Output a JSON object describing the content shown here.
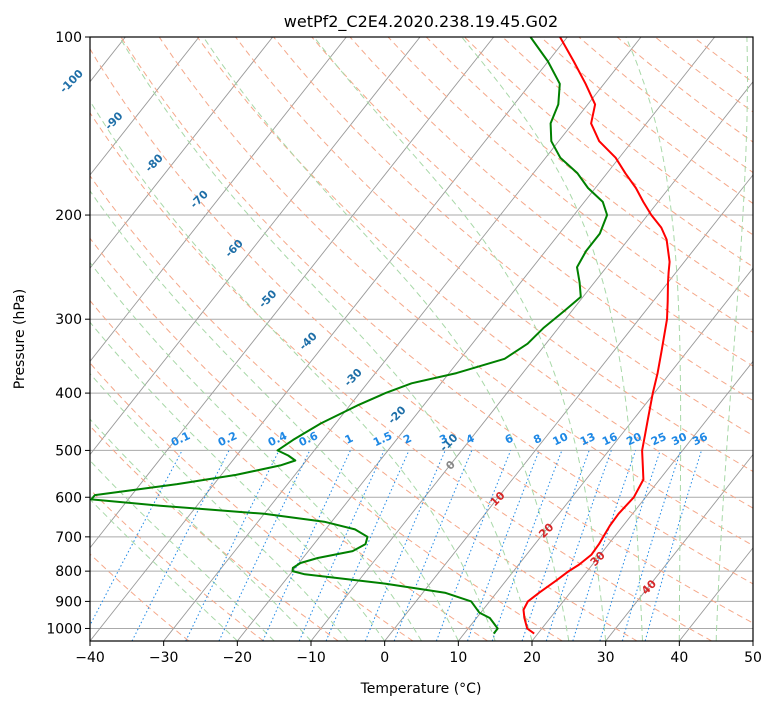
{
  "chart_data": {
    "type": "line",
    "subtype": "skew-T log-P diagram",
    "title": "wetPf2_C2E4.2020.238.19.45.G02",
    "xlabel": "Temperature (°C)",
    "ylabel": "Pressure (hPa)",
    "xlim": [
      -40,
      50
    ],
    "ylim": [
      1050,
      100
    ],
    "y_scale": "log",
    "grid": true,
    "x_ticks": [
      -40,
      -30,
      -20,
      -10,
      0,
      10,
      20,
      30,
      40,
      50
    ],
    "y_ticks": [
      100,
      200,
      300,
      400,
      500,
      600,
      700,
      800,
      900,
      1000
    ],
    "series": [
      {
        "color": "#ff0000",
        "points": [
          [
            1020,
            19.5
          ],
          [
            1000,
            18.0
          ],
          [
            960,
            16.5
          ],
          [
            930,
            15.5
          ],
          [
            900,
            15.2
          ],
          [
            870,
            15.8
          ],
          [
            830,
            16.8
          ],
          [
            800,
            17.5
          ],
          [
            780,
            18.2
          ],
          [
            750,
            18.8
          ],
          [
            720,
            18.7
          ],
          [
            700,
            18.5
          ],
          [
            670,
            18.2
          ],
          [
            640,
            18.1
          ],
          [
            600,
            18.4
          ],
          [
            560,
            17.8
          ],
          [
            530,
            16.2
          ],
          [
            500,
            14.5
          ],
          [
            470,
            13.2
          ],
          [
            440,
            11.8
          ],
          [
            400,
            9.8
          ],
          [
            370,
            8.3
          ],
          [
            340,
            6.5
          ],
          [
            300,
            3.8
          ],
          [
            280,
            2.0
          ],
          [
            260,
            0.0
          ],
          [
            250,
            -1.0
          ],
          [
            240,
            -2.0
          ],
          [
            220,
            -4.8
          ],
          [
            210,
            -6.8
          ],
          [
            200,
            -9.5
          ],
          [
            190,
            -12.0
          ],
          [
            180,
            -14.5
          ],
          [
            170,
            -17.5
          ],
          [
            160,
            -20.5
          ],
          [
            150,
            -24.5
          ],
          [
            140,
            -27.5
          ],
          [
            130,
            -29.0
          ],
          [
            120,
            -32.5
          ],
          [
            110,
            -36.5
          ],
          [
            100,
            -41.0
          ]
        ]
      },
      {
        "color": "#008000",
        "points": [
          [
            1020,
            14.0
          ],
          [
            1000,
            14.0
          ],
          [
            960,
            11.8
          ],
          [
            940,
            9.8
          ],
          [
            900,
            7.5
          ],
          [
            870,
            3.0
          ],
          [
            840,
            -6.0
          ],
          [
            810,
            -18.0
          ],
          [
            800,
            -20.0
          ],
          [
            790,
            -20.3
          ],
          [
            775,
            -19.8
          ],
          [
            760,
            -18.0
          ],
          [
            740,
            -14.0
          ],
          [
            720,
            -13.0
          ],
          [
            700,
            -13.5
          ],
          [
            680,
            -16.0
          ],
          [
            660,
            -21.0
          ],
          [
            640,
            -30.0
          ],
          [
            620,
            -45.0
          ],
          [
            605,
            -55.0
          ],
          [
            595,
            -55.0
          ],
          [
            585,
            -51.0
          ],
          [
            570,
            -45.0
          ],
          [
            550,
            -38.0
          ],
          [
            530,
            -33.0
          ],
          [
            520,
            -31.5
          ],
          [
            510,
            -33.0
          ],
          [
            500,
            -35.0
          ],
          [
            480,
            -34.0
          ],
          [
            450,
            -32.0
          ],
          [
            420,
            -29.0
          ],
          [
            400,
            -26.5
          ],
          [
            385,
            -24.0
          ],
          [
            370,
            -19.0
          ],
          [
            350,
            -14.0
          ],
          [
            330,
            -12.5
          ],
          [
            310,
            -12.0
          ],
          [
            290,
            -11.0
          ],
          [
            275,
            -10.3
          ],
          [
            260,
            -12.0
          ],
          [
            245,
            -14.0
          ],
          [
            230,
            -14.5
          ],
          [
            215,
            -14.5
          ],
          [
            200,
            -15.5
          ],
          [
            190,
            -17.5
          ],
          [
            180,
            -21.0
          ],
          [
            170,
            -24.0
          ],
          [
            160,
            -28.0
          ],
          [
            150,
            -31.0
          ],
          [
            140,
            -33.0
          ],
          [
            130,
            -34.0
          ],
          [
            120,
            -36.0
          ],
          [
            110,
            -40.0
          ],
          [
            100,
            -45.0
          ]
        ]
      }
    ],
    "isotherm_labels": {
      "mixing_ratio": [
        "0.1",
        "0.2",
        "0.4",
        "0.6",
        "1",
        "1.5",
        "2",
        "3",
        "4",
        "6",
        "8",
        "10",
        "13",
        "16",
        "20",
        "25",
        "30",
        "36"
      ],
      "dry_adiabat": [
        "-100",
        "-90",
        "-80",
        "-70",
        "-60",
        "-50",
        "-40",
        "-30",
        "-20",
        "-10"
      ],
      "moist_adiabat": [
        "0",
        "10",
        "20",
        "30",
        "40"
      ]
    }
  },
  "colors": {
    "temperature": "#ff0000",
    "dewpoint": "#008000",
    "dry_adiabat": "#f5a88a",
    "moist_adiabat": "#a8d8a8",
    "mixing_ratio": "#1e88e5",
    "isotherm": "#999999",
    "isobar": "#aaaaaa",
    "dry_label": "#1f6fa8",
    "moist_label": "#d62728",
    "mix_label": "#1e88e5"
  }
}
